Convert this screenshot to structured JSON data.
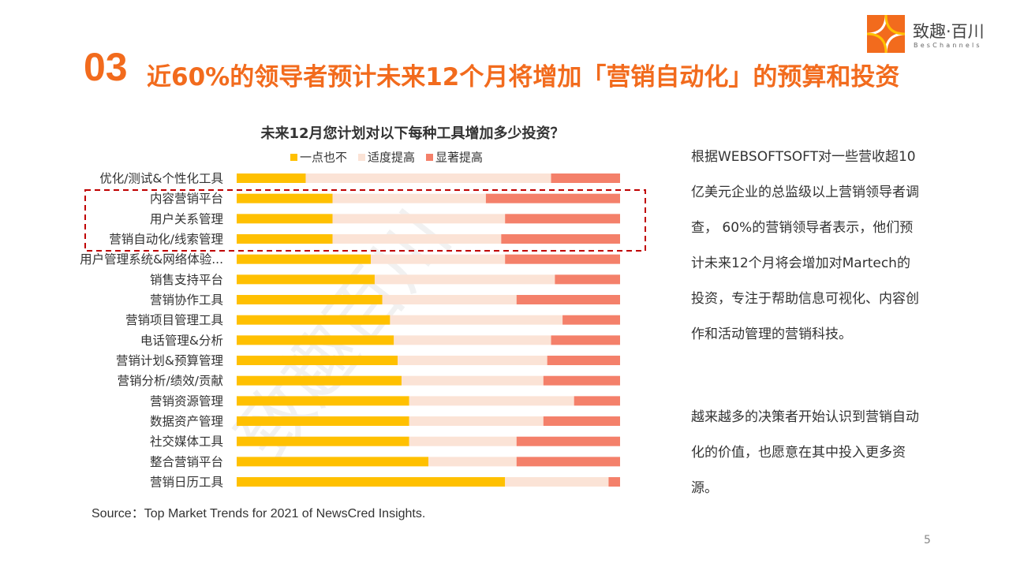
{
  "header": {
    "number": "03",
    "title": "近60%的领导者预计未来12个月将增加「营销自动化」的预算和投资"
  },
  "logo": {
    "name": "致趣·百川",
    "subtitle": "BesChannels"
  },
  "watermark": "致趣百川",
  "chart_data": {
    "type": "bar",
    "orientation": "horizontal",
    "stacked": true,
    "title": "未来12月您计划对以下每种工具增加多少投资？",
    "categories": [
      "优化/测试&个性化工具",
      "内容营销平台",
      "用户关系管理",
      "营销自动化/线索管理",
      "用户管理系统&网络体验...",
      "销售支持平台",
      "营销协作工具",
      "营销项目管理工具",
      "电话管理&分析",
      "营销计划&预算管理",
      "营销分析/绩效/贡献",
      "营销资源管理",
      "数据资产管理",
      "社交媒体工具",
      "整合营销平台",
      "营销日历工具"
    ],
    "series": [
      {
        "name": "一点也不",
        "color": "#FFC000",
        "values": [
          18,
          25,
          25,
          25,
          35,
          36,
          38,
          40,
          41,
          42,
          43,
          45,
          45,
          45,
          50,
          70
        ]
      },
      {
        "name": "适度提高",
        "color": "#FBE3D6",
        "values": [
          64,
          40,
          45,
          44,
          35,
          47,
          35,
          45,
          41,
          39,
          37,
          43,
          35,
          28,
          23,
          27
        ]
      },
      {
        "name": "显著提高",
        "color": "#F4806A",
        "values": [
          18,
          35,
          30,
          31,
          30,
          17,
          27,
          15,
          18,
          19,
          20,
          12,
          20,
          27,
          27,
          3
        ]
      }
    ],
    "legend": "top"
  },
  "paragraphs": [
    "根据WEBSOFTSOFT对一些营收超10亿美元企业的总监级以上营销领导者调查， 60%的营销领导者表示，他们预计未来12个月将会增加对Martech的投资，专注于帮助信息可视化、内容创作和活动管理的营销科技。",
    "越来越多的决策者开始认识到营销自动化的价值，也愿意在其中投入更多资源。"
  ],
  "source": "Source：Top Market Trends for 2021  of NewsCred Insights.",
  "page_number": "5"
}
